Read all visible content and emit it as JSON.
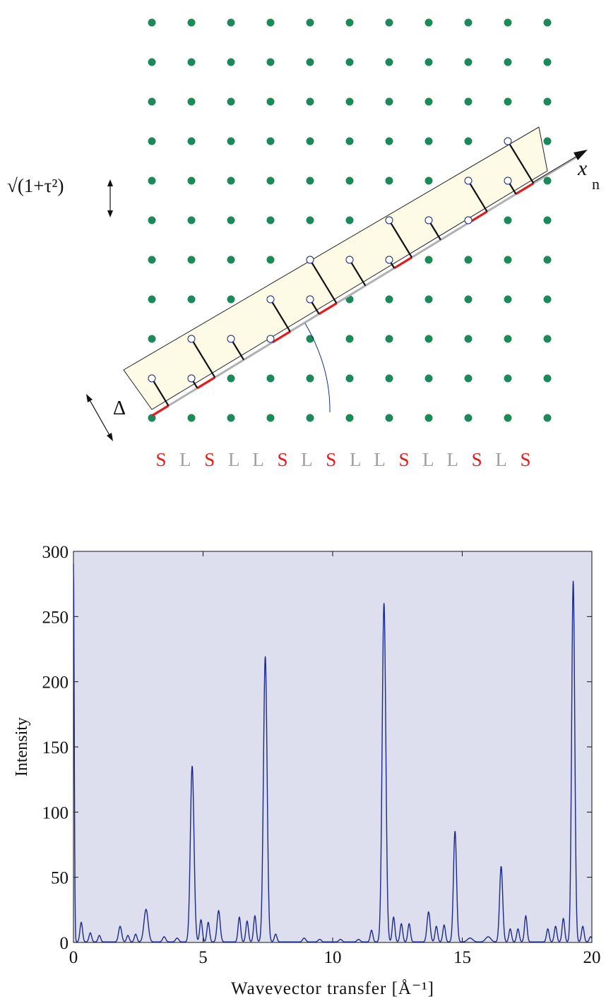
{
  "diagram": {
    "lattice": {
      "columns": 11,
      "rows": 11,
      "dot_color": "#1a8a5a"
    },
    "spacing_label": "√(1+τ²)",
    "width_label": "Δ",
    "axis_label": "x",
    "axis_subscript": "n",
    "sequence": [
      "S",
      "L",
      "S",
      "L",
      "L",
      "S",
      "L",
      "S",
      "L",
      "L",
      "S",
      "L",
      "L",
      "S",
      "L",
      "S"
    ],
    "sequence_colors": {
      "S": "#e41a1c",
      "L": "#a0a0a0"
    },
    "strip_color": "#fdfbe6",
    "projection_colors": {
      "short_segment": "#e41a1c",
      "long_segment": "#b0b0b0",
      "projector": "#111111",
      "curve": "#1c2a8c"
    }
  },
  "chart_data": {
    "type": "line",
    "title": "",
    "xlabel": "Wavevector transfer [Å⁻¹]",
    "ylabel": "Intensity",
    "xlim": [
      0,
      20
    ],
    "ylim": [
      0,
      300
    ],
    "xticks": [
      0,
      5,
      10,
      15,
      20
    ],
    "yticks": [
      0,
      50,
      100,
      150,
      200,
      250,
      300
    ],
    "grid": false,
    "line_color": "#1c2a8c",
    "plot_bg": "#dddeee",
    "peaks": [
      {
        "x": 0.0,
        "y": 290,
        "w": 0.03
      },
      {
        "x": 0.3,
        "y": 15,
        "w": 0.05
      },
      {
        "x": 0.65,
        "y": 7,
        "w": 0.05
      },
      {
        "x": 1.0,
        "y": 5,
        "w": 0.05
      },
      {
        "x": 1.8,
        "y": 12,
        "w": 0.06
      },
      {
        "x": 2.1,
        "y": 5,
        "w": 0.05
      },
      {
        "x": 2.4,
        "y": 6,
        "w": 0.05
      },
      {
        "x": 2.8,
        "y": 25,
        "w": 0.08
      },
      {
        "x": 3.5,
        "y": 4,
        "w": 0.06
      },
      {
        "x": 4.0,
        "y": 3,
        "w": 0.06
      },
      {
        "x": 4.58,
        "y": 135,
        "w": 0.07
      },
      {
        "x": 4.92,
        "y": 17,
        "w": 0.05
      },
      {
        "x": 5.2,
        "y": 15,
        "w": 0.05
      },
      {
        "x": 5.6,
        "y": 24,
        "w": 0.06
      },
      {
        "x": 6.4,
        "y": 19,
        "w": 0.05
      },
      {
        "x": 6.7,
        "y": 16,
        "w": 0.05
      },
      {
        "x": 7.0,
        "y": 20,
        "w": 0.05
      },
      {
        "x": 7.4,
        "y": 219,
        "w": 0.07
      },
      {
        "x": 7.8,
        "y": 6,
        "w": 0.05
      },
      {
        "x": 8.9,
        "y": 3,
        "w": 0.06
      },
      {
        "x": 9.5,
        "y": 2,
        "w": 0.06
      },
      {
        "x": 10.3,
        "y": 2,
        "w": 0.06
      },
      {
        "x": 11.0,
        "y": 2,
        "w": 0.06
      },
      {
        "x": 11.5,
        "y": 9,
        "w": 0.05
      },
      {
        "x": 11.98,
        "y": 260,
        "w": 0.07
      },
      {
        "x": 12.35,
        "y": 19,
        "w": 0.05
      },
      {
        "x": 12.65,
        "y": 14,
        "w": 0.05
      },
      {
        "x": 12.95,
        "y": 14,
        "w": 0.05
      },
      {
        "x": 13.7,
        "y": 23,
        "w": 0.06
      },
      {
        "x": 14.0,
        "y": 12,
        "w": 0.05
      },
      {
        "x": 14.3,
        "y": 13,
        "w": 0.05
      },
      {
        "x": 14.72,
        "y": 85,
        "w": 0.06
      },
      {
        "x": 15.3,
        "y": 3,
        "w": 0.1
      },
      {
        "x": 16.0,
        "y": 4,
        "w": 0.1
      },
      {
        "x": 16.5,
        "y": 58,
        "w": 0.06
      },
      {
        "x": 16.85,
        "y": 10,
        "w": 0.05
      },
      {
        "x": 17.15,
        "y": 10,
        "w": 0.05
      },
      {
        "x": 17.45,
        "y": 20,
        "w": 0.05
      },
      {
        "x": 18.3,
        "y": 10,
        "w": 0.05
      },
      {
        "x": 18.6,
        "y": 12,
        "w": 0.05
      },
      {
        "x": 18.9,
        "y": 18,
        "w": 0.05
      },
      {
        "x": 19.28,
        "y": 277,
        "w": 0.06
      },
      {
        "x": 19.65,
        "y": 12,
        "w": 0.05
      },
      {
        "x": 19.95,
        "y": 4,
        "w": 0.05
      }
    ]
  }
}
